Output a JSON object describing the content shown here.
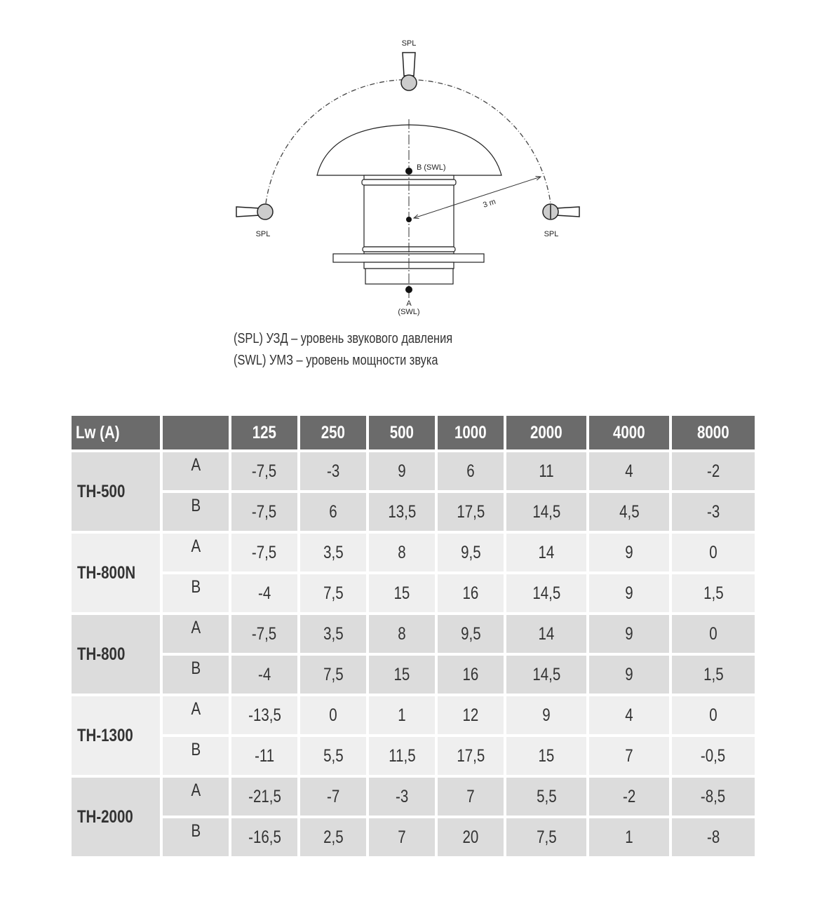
{
  "diagram": {
    "mic_label": "SPL",
    "point_b_label": "B (SWL)",
    "point_a_label": "A",
    "point_a_sub": "(SWL)",
    "distance_label": "3 m"
  },
  "legend": [
    "(SPL) УЗД – уровень звукового давления",
    "(SWL) УМЗ – уровень мощности звука"
  ],
  "table": {
    "header": [
      "Lw (A)",
      "",
      "125",
      "250",
      "500",
      "1000",
      "2000",
      "4000",
      "8000"
    ],
    "groups": [
      {
        "model": "TH-500",
        "rows": [
          {
            "point": "A",
            "values": [
              "-7,5",
              "-3",
              "9",
              "6",
              "11",
              "4",
              "-2"
            ]
          },
          {
            "point": "B",
            "values": [
              "-7,5",
              "6",
              "13,5",
              "17,5",
              "14,5",
              "4,5",
              "-3"
            ]
          }
        ]
      },
      {
        "model": "TH-800N",
        "rows": [
          {
            "point": "A",
            "values": [
              "-7,5",
              "3,5",
              "8",
              "9,5",
              "14",
              "9",
              "0"
            ]
          },
          {
            "point": "B",
            "values": [
              "-4",
              "7,5",
              "15",
              "16",
              "14,5",
              "9",
              "1,5"
            ]
          }
        ]
      },
      {
        "model": "TH-800",
        "rows": [
          {
            "point": "A",
            "values": [
              "-7,5",
              "3,5",
              "8",
              "9,5",
              "14",
              "9",
              "0"
            ]
          },
          {
            "point": "B",
            "values": [
              "-4",
              "7,5",
              "15",
              "16",
              "14,5",
              "9",
              "1,5"
            ]
          }
        ]
      },
      {
        "model": "TH-1300",
        "rows": [
          {
            "point": "A",
            "values": [
              "-13,5",
              "0",
              "1",
              "12",
              "9",
              "4",
              "0"
            ]
          },
          {
            "point": "B",
            "values": [
              "-11",
              "5,5",
              "11,5",
              "17,5",
              "15",
              "7",
              "-0,5"
            ]
          }
        ]
      },
      {
        "model": "TH-2000",
        "rows": [
          {
            "point": "A",
            "values": [
              "-21,5",
              "-7",
              "-3",
              "7",
              "5,5",
              "-2",
              "-8,5"
            ]
          },
          {
            "point": "B",
            "values": [
              "-16,5",
              "2,5",
              "7",
              "20",
              "7,5",
              "1",
              "-8"
            ]
          }
        ]
      }
    ]
  },
  "colors": {
    "header_bg": "#6b6b6b",
    "group_dark": "#dcdcdc",
    "group_light": "#efefef"
  }
}
